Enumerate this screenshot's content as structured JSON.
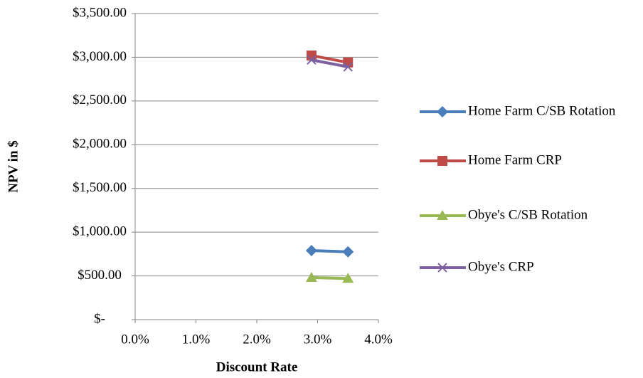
{
  "chart_data": {
    "type": "line",
    "x_label": "Discount Rate",
    "y_label": "NPV in $",
    "x": [
      2.9,
      3.5
    ],
    "series": [
      {
        "name": "Home Farm C/SB Rotation",
        "color": "#4a7ebb",
        "marker": "diamond",
        "values": [
          790,
          775
        ]
      },
      {
        "name": "Home Farm CRP",
        "color": "#be4b48",
        "marker": "square",
        "values": [
          3020,
          2940
        ]
      },
      {
        "name": "Obye's C/SB Rotation",
        "color": "#98b954",
        "marker": "triangle",
        "values": [
          480,
          470
        ]
      },
      {
        "name": "Obye's CRP",
        "color": "#7d60a0",
        "marker": "x",
        "values": [
          2970,
          2890
        ]
      }
    ],
    "xlim": [
      0,
      4
    ],
    "xticks": [
      {
        "value": 0,
        "label": "0.0%"
      },
      {
        "value": 1,
        "label": "1.0%"
      },
      {
        "value": 2,
        "label": "2.0%"
      },
      {
        "value": 3,
        "label": "3.0%"
      },
      {
        "value": 4,
        "label": "4.0%"
      }
    ],
    "ylim": [
      0,
      3500
    ],
    "yticks": [
      {
        "value": 0,
        "label": "$-"
      },
      {
        "value": 500,
        "label": "$500.00"
      },
      {
        "value": 1000,
        "label": "$1,000.00"
      },
      {
        "value": 1500,
        "label": "$1,500.00"
      },
      {
        "value": 2000,
        "label": "$2,000.00"
      },
      {
        "value": 2500,
        "label": "$2,500.00"
      },
      {
        "value": 3000,
        "label": "$3,000.00"
      },
      {
        "value": 3500,
        "label": "$3,500.00"
      }
    ],
    "grid": true,
    "legend": "right"
  }
}
